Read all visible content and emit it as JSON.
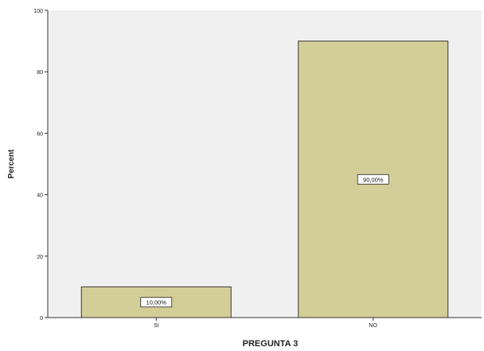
{
  "chart_data": {
    "type": "bar",
    "title": "",
    "xlabel": "PREGUNTA 3",
    "ylabel": "Percent",
    "categories": [
      "SI",
      "NO"
    ],
    "values": [
      10.0,
      90.0
    ],
    "data_labels": [
      "10,00%",
      "90,00%"
    ],
    "ylim": [
      0,
      100
    ],
    "yticks": [
      0,
      20,
      40,
      60,
      80,
      100
    ],
    "ytick_labels": [
      "0",
      "20",
      "40",
      "60",
      "80",
      "100"
    ],
    "grid": false,
    "legend": "none",
    "colors": {
      "plot_background": "#f0f0f0",
      "bar_fill": "#d3ce97",
      "bar_stroke": "#3a3a3a",
      "axis": "#333333",
      "label_box_fill": "#ffffff"
    }
  }
}
